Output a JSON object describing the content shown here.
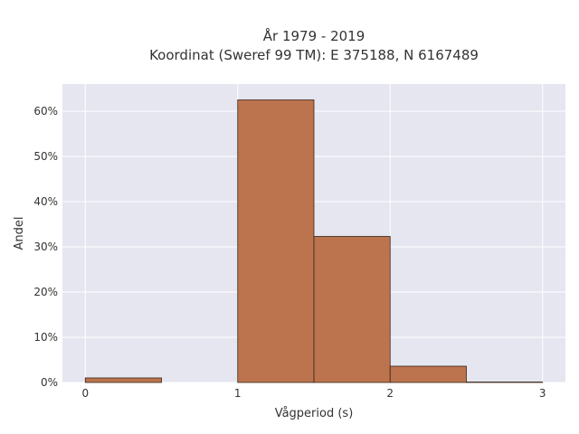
{
  "chart_data": {
    "type": "bar",
    "title_line1": "År 1979 - 2019",
    "title_line2": "Koordinat (Sweref 99 TM): E 375188, N 6167489",
    "xlabel": "Vågperiod (s)",
    "ylabel": "Andel",
    "xlim": [
      -0.15,
      3.15
    ],
    "ylim": [
      0,
      66
    ],
    "x_ticks": [
      0,
      1,
      2,
      3
    ],
    "y_ticks": [
      0,
      10,
      20,
      30,
      40,
      50,
      60
    ],
    "y_tick_suffix": "%",
    "bin_edges": [
      [
        0,
        0.5
      ],
      [
        0.5,
        1.0
      ],
      [
        1.0,
        1.5
      ],
      [
        1.5,
        2.0
      ],
      [
        2.0,
        2.5
      ],
      [
        2.5,
        3.0
      ]
    ],
    "values": [
      1.0,
      0.0,
      62.5,
      32.3,
      3.6,
      0.1
    ],
    "grid": true,
    "colors": {
      "plot_bg": "#e5e6f0",
      "grid": "#ffffff",
      "bar_fill": "#b86e45",
      "bar_stroke": "#3a2418"
    }
  }
}
